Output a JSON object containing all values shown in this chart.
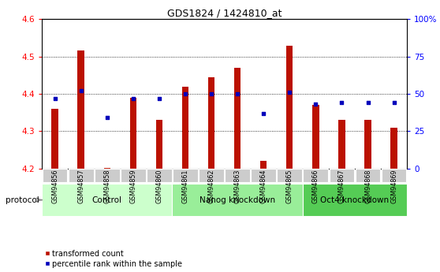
{
  "title": "GDS1824 / 1424810_at",
  "samples": [
    "GSM94856",
    "GSM94857",
    "GSM94858",
    "GSM94859",
    "GSM94860",
    "GSM94861",
    "GSM94862",
    "GSM94863",
    "GSM94864",
    "GSM94865",
    "GSM94866",
    "GSM94867",
    "GSM94868",
    "GSM94869"
  ],
  "transformed_count": [
    4.36,
    4.515,
    4.201,
    4.39,
    4.33,
    4.42,
    4.445,
    4.47,
    4.22,
    4.528,
    4.37,
    4.33,
    4.33,
    4.31
  ],
  "percentile_rank": [
    47,
    52,
    34,
    47,
    47,
    50,
    50,
    50,
    37,
    51,
    43,
    44,
    44,
    44
  ],
  "groups": [
    {
      "label": "Control",
      "start": 0,
      "end": 5,
      "color": "#ccffcc"
    },
    {
      "label": "Nanog knockdown",
      "start": 5,
      "end": 10,
      "color": "#99ee99"
    },
    {
      "label": "Oct4 knockdown",
      "start": 10,
      "end": 14,
      "color": "#55cc55"
    }
  ],
  "ylim_left": [
    4.2,
    4.6
  ],
  "ylim_right": [
    0,
    100
  ],
  "yticks_left": [
    4.2,
    4.3,
    4.4,
    4.5,
    4.6
  ],
  "yticks_right": [
    0,
    25,
    50,
    75,
    100
  ],
  "bar_color": "#bb1100",
  "dot_color": "#0000bb",
  "bar_width": 0.25,
  "tick_bg_color": "#cccccc",
  "protocol_label": "protocol",
  "legend_items": [
    {
      "label": "transformed count",
      "color": "#bb1100"
    },
    {
      "label": "percentile rank within the sample",
      "color": "#0000bb"
    }
  ]
}
